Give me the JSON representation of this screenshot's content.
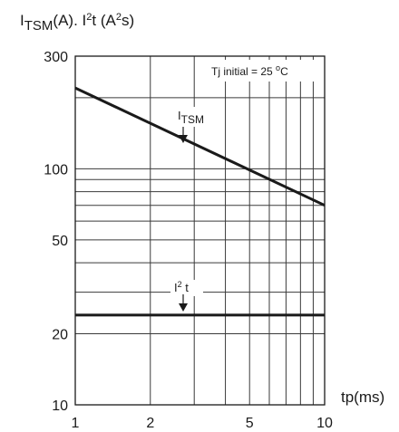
{
  "chart_data": {
    "type": "line",
    "title": "",
    "ylabel": {
      "main": "I",
      "sub": "TSM",
      "rest": "(A). I",
      "sup": "2",
      "tail": "t (A",
      "sup2": "2",
      "end": "s)"
    },
    "xlabel": "tp(ms)",
    "x_scale": "log",
    "y_scale": "log",
    "xlim": [
      1,
      10
    ],
    "ylim": [
      10,
      300
    ],
    "x_tick_labels": [
      "1",
      "2",
      "5",
      "10"
    ],
    "x_tick_values": [
      1,
      2,
      5,
      10
    ],
    "x_grid_values": [
      1,
      2,
      3,
      4,
      5,
      6,
      7,
      8,
      9,
      10
    ],
    "y_tick_labels": [
      "10",
      "20",
      "50",
      "100",
      "300"
    ],
    "y_tick_values": [
      10,
      20,
      50,
      100,
      300
    ],
    "y_grid_values": [
      10,
      20,
      30,
      40,
      50,
      60,
      70,
      80,
      90,
      100,
      200,
      300
    ],
    "grid": true,
    "series": [
      {
        "name": "ITSM",
        "label_main": "I",
        "label_sub": "TSM",
        "x": [
          1,
          10
        ],
        "y": [
          220,
          70
        ]
      },
      {
        "name": "I²t",
        "label_main": "I",
        "label_sup": "2",
        "label_tail": " t",
        "x": [
          1,
          10
        ],
        "y": [
          24,
          24
        ]
      }
    ],
    "annotation": {
      "text_pre": "Tj initial = 25 ",
      "text_deg": "o",
      "text_post": "C"
    },
    "colors": {
      "line": "#1a1a1a",
      "grid": "#3a3a3a",
      "background": "#ffffff"
    }
  }
}
